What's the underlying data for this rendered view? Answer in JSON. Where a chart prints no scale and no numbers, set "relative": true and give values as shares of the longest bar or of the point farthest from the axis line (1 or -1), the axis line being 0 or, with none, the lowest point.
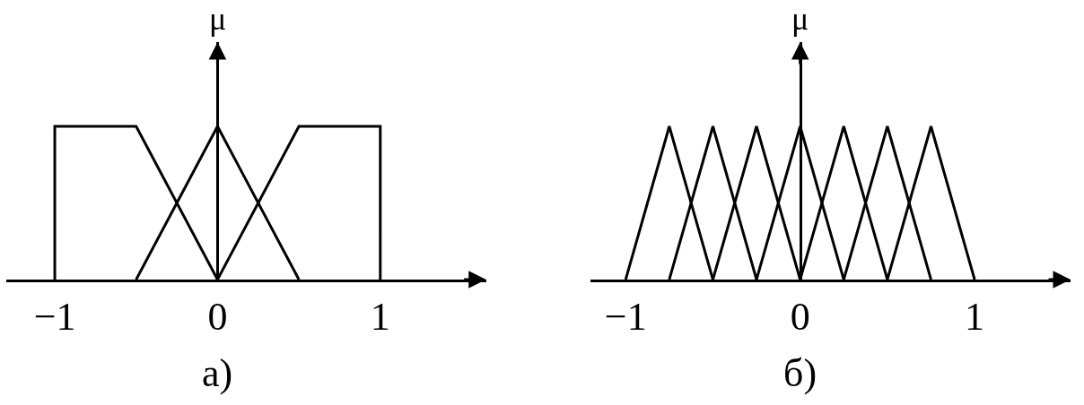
{
  "chart_data": [
    {
      "type": "line",
      "ylabel": "μ",
      "annotations": [
        "a)"
      ],
      "relative": true,
      "tick_labels": "x",
      "xlim": [
        -1.3,
        1.65
      ],
      "xticks": [
        {
          "value": -1,
          "label": "−1"
        },
        0,
        1
      ],
      "series": [
        {
          "color": "#000000",
          "x": [
            -1,
            -1,
            -0.5,
            0
          ],
          "values": [
            0,
            1,
            1,
            0
          ]
        },
        {
          "color": "#000000",
          "x": [
            -0.5,
            0,
            0.5
          ],
          "values": [
            0,
            1,
            0
          ]
        },
        {
          "color": "#000000",
          "x": [
            0,
            0.5,
            1,
            1
          ],
          "values": [
            0,
            1,
            1,
            0
          ]
        }
      ]
    },
    {
      "type": "line",
      "ylabel": "μ",
      "annotations": [
        "б)"
      ],
      "relative": true,
      "tick_labels": "x",
      "xlim": [
        -1.2,
        1.55
      ],
      "xticks": [
        {
          "value": -1,
          "label": "−1"
        },
        0,
        1
      ],
      "series": [
        {
          "color": "#000000",
          "x": [
            -1,
            -0.75,
            -0.5
          ],
          "values": [
            0,
            1,
            0
          ]
        },
        {
          "color": "#000000",
          "x": [
            -0.75,
            -0.5,
            -0.25
          ],
          "values": [
            0,
            1,
            0
          ]
        },
        {
          "color": "#000000",
          "x": [
            -0.5,
            -0.25,
            0
          ],
          "values": [
            0,
            1,
            0
          ]
        },
        {
          "color": "#000000",
          "x": [
            -0.25,
            0,
            0.25
          ],
          "values": [
            0,
            1,
            0
          ]
        },
        {
          "color": "#000000",
          "x": [
            0,
            0.25,
            0.5
          ],
          "values": [
            0,
            1,
            0
          ]
        },
        {
          "color": "#000000",
          "x": [
            0.25,
            0.5,
            0.75
          ],
          "values": [
            0,
            1,
            0
          ]
        },
        {
          "color": "#000000",
          "x": [
            0.5,
            0.75,
            1
          ],
          "values": [
            0,
            1,
            0
          ]
        }
      ]
    }
  ]
}
